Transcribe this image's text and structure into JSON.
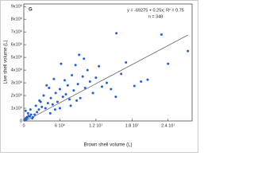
{
  "chart_data": {
    "type": "scatter",
    "panel_label": "G",
    "annotation": "y = -69275 + 0.25x; R² = 0.75",
    "n_label": "n = 348",
    "fit": {
      "intercept": -69275,
      "slope": 0.25
    },
    "x_label": "Brown shell volume (L)",
    "y_label": "Live shell volume (L)",
    "color": "#1f5fe0",
    "line_color": "#555555",
    "xlim": [
      0,
      28000000.0
    ],
    "ylim": [
      0,
      9200000.0
    ],
    "xticks": [
      0,
      {
        "value": 6000000.0,
        "label": "6 10⁶"
      },
      {
        "value": 12000000.0,
        "label": "1.2 10⁷"
      },
      {
        "value": 18000000.0,
        "label": "1.8 10⁷"
      },
      {
        "value": 24000000.0,
        "label": "2.4 10⁷"
      }
    ],
    "yticks": [
      0,
      {
        "value": 1000000.0,
        "label": "1x10⁶"
      },
      {
        "value": 2000000.0,
        "label": "2x10⁶"
      },
      {
        "value": 3000000.0,
        "label": "3x10⁶"
      },
      {
        "value": 4000000.0,
        "label": "4x10⁶"
      },
      {
        "value": 5000000.0,
        "label": "5x10⁶"
      },
      {
        "value": 6000000.0,
        "label": "6x10⁶"
      },
      {
        "value": 7000000.0,
        "label": "7x10⁶"
      },
      {
        "value": 8000000.0,
        "label": "8x10⁶"
      },
      {
        "value": 9000000.0,
        "label": "9x10⁶"
      }
    ],
    "x": [
      100000.0,
      200000.0,
      300000.0,
      400000.0,
      500000.0,
      600000.0,
      800000.0,
      1000000.0,
      1200000.0,
      1500000.0,
      300000.0,
      700000.0,
      1100000.0,
      1800000.0,
      2000000.0,
      2200000.0,
      2500000.0,
      2800000.0,
      3000000.0,
      3300000.0,
      3600000.0,
      4000000.0,
      4200000.0,
      4500000.0,
      4800000.0,
      5000000.0,
      5300000.0,
      5600000.0,
      6000000.0,
      6200000.0,
      6500000.0,
      6800000.0,
      7000000.0,
      7300000.0,
      7600000.0,
      8000000.0,
      8300000.0,
      8600000.0,
      9000000.0,
      9400000.0,
      9800000.0,
      10200000.0,
      10600000.0,
      11000000.0,
      11500000.0,
      12000000.0,
      12500000.0,
      13000000.0,
      13800000.0,
      14500000.0,
      15300000.0,
      15400000.0,
      16200000.0,
      17000000.0,
      18400000.0,
      19500000.0,
      20600000.0,
      22900000.0,
      24000000.0,
      27300000.0,
      5200000.0,
      6000000.0,
      7800000.0,
      8800000.0,
      9200000.0,
      10000000.0,
      4400000.0,
      3800000.0,
      2600000.0,
      1400000.0
    ],
    "values": [
      50000.0,
      100000.0,
      200000.0,
      150000.0,
      300000.0,
      250000.0,
      400000.0,
      350000.0,
      500000.0,
      300000.0,
      800000.0,
      600000.0,
      900000.0,
      500000.0,
      1200000.0,
      700000.0,
      900000.0,
      1500000.0,
      1100000.0,
      2000000.0,
      1000000.0,
      1400000.0,
      2600000.0,
      1800000.0,
      1300000.0,
      3300000.0,
      2200000.0,
      1500000.0,
      2500000.0,
      4500000.0,
      1900000.0,
      3200000.0,
      2100000.0,
      2800000.0,
      1700000.0,
      3600000.0,
      2400000.0,
      4400000.0,
      2900000.0,
      1800000.0,
      3500000.0,
      2600000.0,
      4000000.0,
      3100000.0,
      2200000.0,
      3400000.0,
      4300000.0,
      2700000.0,
      3000000.0,
      2500000.0,
      1900000.0,
      6900000.0,
      3700000.0,
      4600000.0,
      2750000.0,
      3100000.0,
      3250000.0,
      6800000.0,
      4500000.0,
      5500000.0,
      900000.0,
      1000000.0,
      1200000.0,
      1600000.0,
      5200000.0,
      4900000.0,
      600000.0,
      2800000.0,
      1600000.0,
      200000.0
    ]
  }
}
